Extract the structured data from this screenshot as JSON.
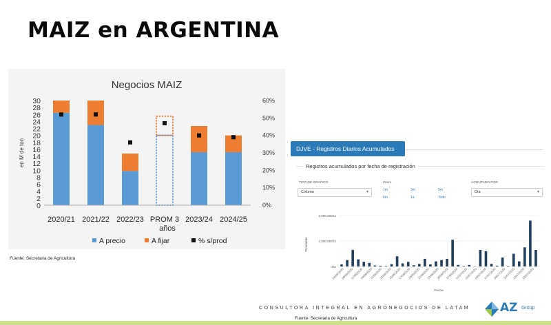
{
  "page_title": "MAIZ en ARGENTINA",
  "left_source": "Fuente: Secretaria de Agricultura",
  "chart_data": [
    {
      "type": "bar",
      "title": "Negocios MAIZ",
      "ylabel": "en M de ton",
      "categories": [
        "2020/21",
        "2021/22",
        "2022/23",
        "PROM 3 años",
        "2023/24",
        "2024/25"
      ],
      "series": [
        {
          "name": "A precio",
          "color": "#5b9bd5",
          "values": [
            26.5,
            23,
            9.8,
            20,
            15.2,
            15.2
          ]
        },
        {
          "name": "A fijar",
          "color": "#ed7d31",
          "values": [
            3.5,
            7,
            5,
            5.5,
            7.5,
            4.8
          ]
        },
        {
          "name": "% s/prod",
          "color": "#111111",
          "axis": "right",
          "values": [
            52,
            52,
            36,
            47,
            40,
            39
          ]
        }
      ],
      "ylim": [
        0,
        30
      ],
      "yticks": [
        0,
        2,
        4,
        6,
        8,
        10,
        12,
        14,
        16,
        18,
        20,
        22,
        24,
        26,
        28,
        30
      ],
      "y2lim": [
        0,
        60
      ],
      "y2ticks": [
        "0%",
        "10%",
        "20%",
        "30%",
        "40%",
        "50%",
        "60%"
      ],
      "dashed_category": "PROM 3 años",
      "legend_position": "bottom"
    },
    {
      "type": "bar",
      "title": "Registros acumulados por fecha de registración",
      "xlabel": "Fecha",
      "ylabel": "Toneladas",
      "ylim": [
        0,
        2000000
      ],
      "yticks": [
        "0 tn",
        "1,000,000 tn",
        "2,000,000 tn"
      ],
      "xticks": [
        "03/06/2025",
        "05/06/2025",
        "07/06/2025",
        "09/06/2025",
        "11/06/2025",
        "13/06/2025",
        "15/06/2025",
        "17/06/2025",
        "19/06/2025",
        "21/06/2025",
        "23/06/2025",
        "25/06/2025",
        "27/06/2025",
        "01/07/2025",
        "03/07/2025",
        "05/07/2025",
        "07/07/2025",
        "09/07/2025",
        "11/07/2025",
        "13/07/2025",
        "15/07/2025"
      ],
      "values": [
        80000,
        250000,
        650000,
        280000,
        180000,
        140000,
        40000,
        30000,
        20000,
        90000,
        400000,
        120000,
        180000,
        50000,
        100000,
        300000,
        80000,
        200000,
        250000,
        300000,
        1050000,
        60000,
        20000,
        60000,
        10000,
        650000,
        600000,
        100000,
        30000,
        350000,
        20000,
        500000,
        200000,
        750000,
        1800000,
        650000
      ],
      "color": "#1f3f5f"
    }
  ],
  "dashboard": {
    "header": "DJVE - Registros Diarios Acumulados",
    "card_title": "Registros acumulados por fecha de registración",
    "chart_type_label": "TIPO DE GRAFICO",
    "chart_type_value": "Column",
    "zoom_label": "Zoom",
    "zoom_options": [
      "1m",
      "3m",
      "5m",
      "6m",
      "1a",
      "Todo"
    ],
    "group_label": "AGRUPADO POR",
    "group_value": "Día"
  },
  "footer": {
    "text": "CONSULTORA INTEGRAL EN AGRONEGOCIOS DE LATAM",
    "source": "Fuente: Secretaria de Agricultura",
    "logo_text": "AZ",
    "logo_sub": "Group"
  }
}
